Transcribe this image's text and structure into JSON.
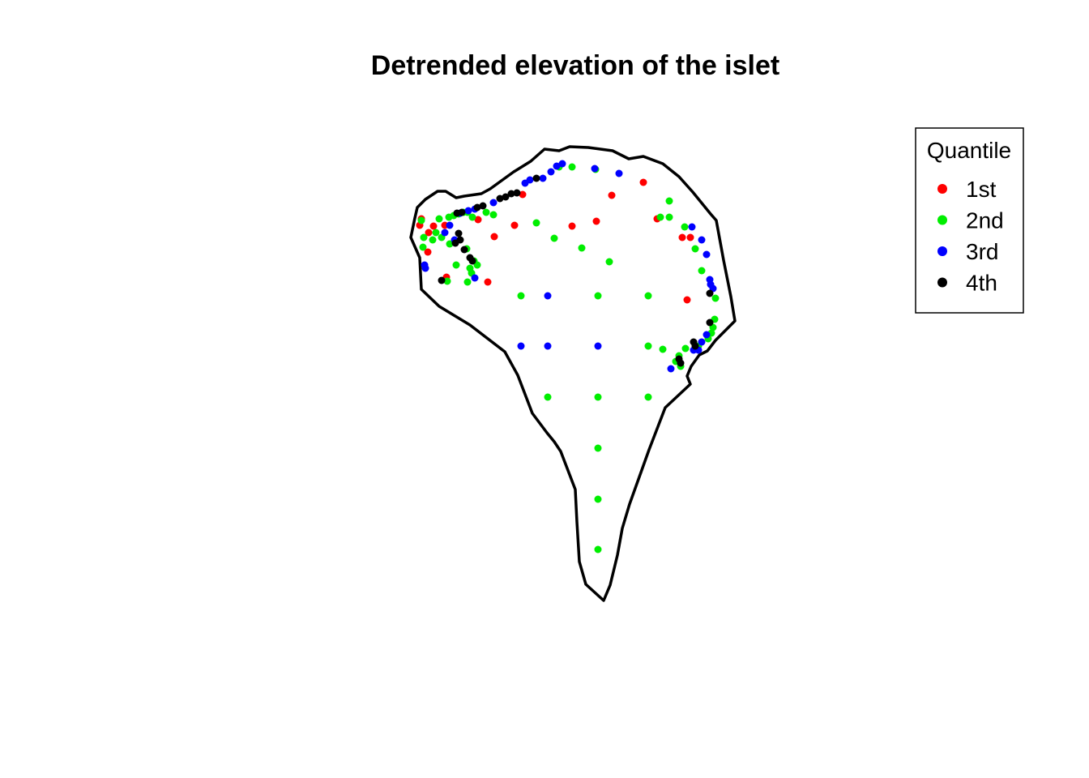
{
  "chart_data": {
    "type": "scatter",
    "title": "Detrended elevation of the islet",
    "xlabel": "",
    "ylabel": "",
    "grid": false,
    "legend": {
      "title": "Quantile",
      "placement": "top-right",
      "entries": [
        {
          "label": "1st",
          "color": "#ff0000"
        },
        {
          "label": "2nd",
          "color": "#00ee00"
        },
        {
          "label": "3rd",
          "color": "#0000ff"
        },
        {
          "label": "4th",
          "color": "#000000"
        }
      ]
    },
    "outline": [
      [
        512,
        269
      ],
      [
        507,
        293
      ],
      [
        518,
        318
      ],
      [
        520,
        357
      ],
      [
        542,
        378
      ],
      [
        580,
        401
      ],
      [
        623,
        434
      ],
      [
        639,
        463
      ],
      [
        657,
        510
      ],
      [
        675,
        534
      ],
      [
        684,
        545
      ],
      [
        692,
        557
      ],
      [
        710,
        604
      ],
      [
        712,
        644
      ],
      [
        715,
        693
      ],
      [
        723,
        721
      ],
      [
        745,
        741
      ],
      [
        753,
        722
      ],
      [
        762,
        685
      ],
      [
        768,
        652
      ],
      [
        777,
        622
      ],
      [
        801,
        555
      ],
      [
        821,
        503
      ],
      [
        852,
        474
      ],
      [
        848,
        464
      ],
      [
        853,
        452
      ],
      [
        863,
        438
      ],
      [
        873,
        433
      ],
      [
        883,
        420
      ],
      [
        897,
        406
      ],
      [
        907,
        396
      ],
      [
        902,
        366
      ],
      [
        893,
        321
      ],
      [
        884,
        272
      ],
      [
        877,
        264
      ],
      [
        855,
        237
      ],
      [
        838,
        218
      ],
      [
        818,
        202
      ],
      [
        794,
        193
      ],
      [
        776,
        196
      ],
      [
        756,
        186
      ],
      [
        726,
        182
      ],
      [
        703,
        181
      ],
      [
        690,
        186
      ],
      [
        672,
        184
      ],
      [
        655,
        199
      ],
      [
        634,
        212
      ],
      [
        605,
        233
      ],
      [
        594,
        239
      ],
      [
        573,
        242
      ],
      [
        563,
        244
      ],
      [
        550,
        236
      ],
      [
        540,
        236
      ],
      [
        525,
        246
      ],
      [
        515,
        256
      ],
      [
        512,
        269
      ]
    ],
    "series": [
      {
        "name": "1st",
        "color": "#ff0000",
        "points": [
          [
            518,
            278
          ],
          [
            529,
            287
          ],
          [
            535,
            279
          ],
          [
            528,
            311
          ],
          [
            549,
            278
          ],
          [
            551,
            342
          ],
          [
            590,
            271
          ],
          [
            610,
            292
          ],
          [
            635,
            278
          ],
          [
            645,
            240
          ],
          [
            602,
            348
          ],
          [
            706,
            279
          ],
          [
            736,
            273
          ],
          [
            755,
            241
          ],
          [
            794,
            225
          ],
          [
            811,
            270
          ],
          [
            842,
            293
          ],
          [
            852,
            293
          ],
          [
            848,
            370
          ],
          [
            520,
            270
          ]
        ]
      },
      {
        "name": "2nd",
        "color": "#00ee00",
        "points": [
          [
            520,
            272
          ],
          [
            523,
            293
          ],
          [
            522,
            305
          ],
          [
            534,
            296
          ],
          [
            538,
            287
          ],
          [
            545,
            293
          ],
          [
            542,
            270
          ],
          [
            554,
            268
          ],
          [
            555,
            301
          ],
          [
            560,
            266
          ],
          [
            566,
            264
          ],
          [
            572,
            262
          ],
          [
            577,
            262
          ],
          [
            583,
            268
          ],
          [
            576,
            307
          ],
          [
            585,
            322
          ],
          [
            589,
            327
          ],
          [
            580,
            331
          ],
          [
            582,
            337
          ],
          [
            577,
            348
          ],
          [
            563,
            327
          ],
          [
            552,
            347
          ],
          [
            600,
            262
          ],
          [
            609,
            265
          ],
          [
            662,
            275
          ],
          [
            684,
            294
          ],
          [
            718,
            306
          ],
          [
            752,
            323
          ],
          [
            643,
            365
          ],
          [
            738,
            365
          ],
          [
            800,
            365
          ],
          [
            690,
            206
          ],
          [
            706,
            206
          ],
          [
            735,
            209
          ],
          [
            826,
            248
          ],
          [
            815,
            268
          ],
          [
            826,
            268
          ],
          [
            845,
            280
          ],
          [
            858,
            307
          ],
          [
            866,
            334
          ],
          [
            883,
            368
          ],
          [
            882,
            394
          ],
          [
            880,
            404
          ],
          [
            878,
            411
          ],
          [
            874,
            418
          ],
          [
            862,
            427
          ],
          [
            846,
            430
          ],
          [
            838,
            439
          ],
          [
            834,
            446
          ],
          [
            840,
            452
          ],
          [
            800,
            427
          ],
          [
            818,
            431
          ],
          [
            676,
            490
          ],
          [
            738,
            490
          ],
          [
            800,
            490
          ],
          [
            738,
            553
          ],
          [
            738,
            616
          ],
          [
            738,
            678
          ]
        ]
      },
      {
        "name": "3rd",
        "color": "#0000ff",
        "points": [
          [
            524,
            327
          ],
          [
            525,
            331
          ],
          [
            549,
            287
          ],
          [
            555,
            278
          ],
          [
            561,
            296
          ],
          [
            568,
            263
          ],
          [
            578,
            260
          ],
          [
            586,
            258
          ],
          [
            609,
            250
          ],
          [
            648,
            226
          ],
          [
            654,
            222
          ],
          [
            670,
            220
          ],
          [
            680,
            212
          ],
          [
            687,
            205
          ],
          [
            694,
            202
          ],
          [
            734,
            208
          ],
          [
            764,
            214
          ],
          [
            586,
            343
          ],
          [
            854,
            280
          ],
          [
            866,
            296
          ],
          [
            872,
            314
          ],
          [
            876,
            345
          ],
          [
            877,
            351
          ],
          [
            880,
            356
          ],
          [
            872,
            413
          ],
          [
            866,
            422
          ],
          [
            856,
            432
          ],
          [
            862,
            432
          ],
          [
            828,
            455
          ],
          [
            643,
            427
          ],
          [
            676,
            427
          ],
          [
            738,
            427
          ],
          [
            676,
            365
          ]
        ]
      },
      {
        "name": "4th",
        "color": "#000000",
        "points": [
          [
            564,
            263
          ],
          [
            570,
            262
          ],
          [
            589,
            256
          ],
          [
            596,
            254
          ],
          [
            617,
            245
          ],
          [
            624,
            243
          ],
          [
            631,
            239
          ],
          [
            638,
            238
          ],
          [
            662,
            220
          ],
          [
            566,
            288
          ],
          [
            568,
            296
          ],
          [
            562,
            300
          ],
          [
            573,
            308
          ],
          [
            580,
            318
          ],
          [
            583,
            322
          ],
          [
            545,
            346
          ],
          [
            876,
            362
          ],
          [
            876,
            398
          ],
          [
            856,
            422
          ],
          [
            858,
            427
          ],
          [
            838,
            443
          ],
          [
            840,
            448
          ]
        ]
      }
    ]
  }
}
